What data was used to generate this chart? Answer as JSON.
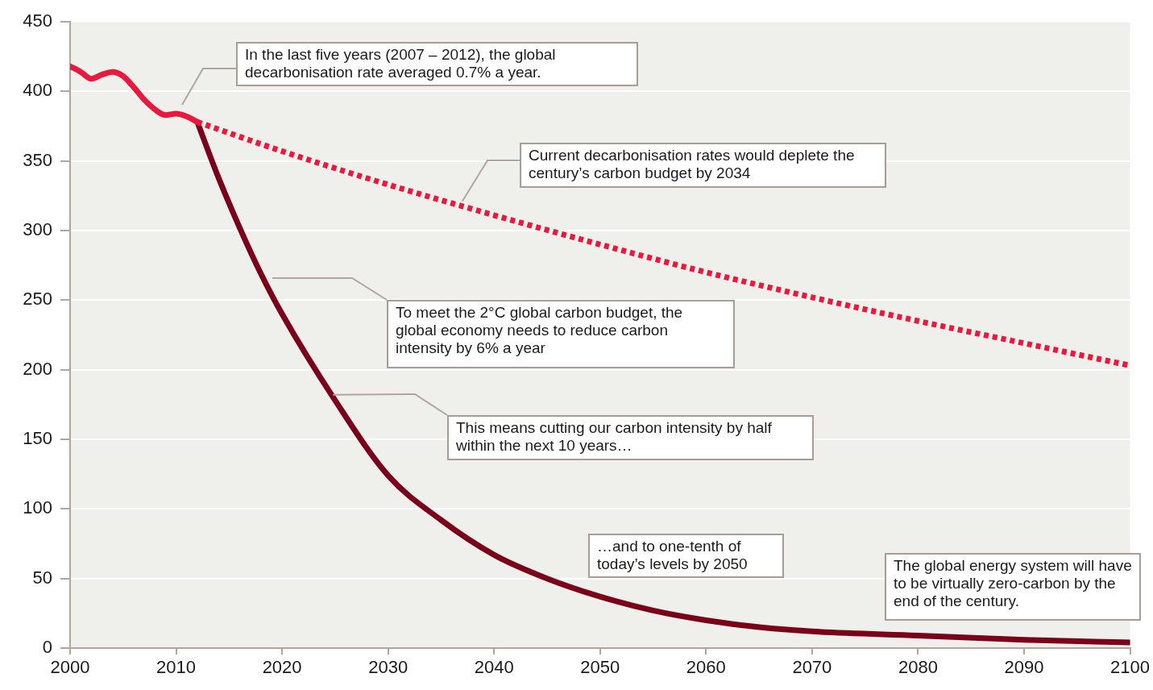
{
  "chart_data": {
    "type": "line",
    "xlim": [
      2000,
      2100
    ],
    "xticks": [
      2000,
      2010,
      2020,
      2030,
      2040,
      2050,
      2060,
      2070,
      2080,
      2090,
      2100
    ],
    "ylim": [
      0,
      450
    ],
    "yticks": [
      0,
      50,
      100,
      150,
      200,
      250,
      300,
      350,
      400,
      450
    ],
    "grid": "y",
    "legend": false,
    "marker": "none",
    "series": [
      {
        "color": "#e8193c",
        "line_style": "solid",
        "x": [
          2000,
          2001,
          2002,
          2003,
          2004,
          2005,
          2006,
          2007,
          2008,
          2009,
          2010,
          2011,
          2012
        ],
        "values": [
          418,
          414,
          409,
          412,
          414,
          411,
          403,
          394,
          387,
          383,
          384,
          382,
          378
        ]
      },
      {
        "color": "#e8193c",
        "line_style": "dotted",
        "x": [
          2012,
          2020,
          2030,
          2040,
          2050,
          2060,
          2070,
          2080,
          2090,
          2100
        ],
        "values": [
          378,
          357,
          333,
          311,
          290,
          270,
          252,
          235,
          219,
          203
        ]
      },
      {
        "color": "#7a0019",
        "line_style": "solid",
        "x": [
          2012,
          2014,
          2016,
          2018,
          2020,
          2025,
          2030,
          2035,
          2040,
          2045,
          2050,
          2055,
          2060,
          2065,
          2070,
          2080,
          2090,
          2100
        ],
        "values": [
          378,
          338,
          302,
          269,
          240,
          178,
          124,
          92,
          67,
          50,
          37,
          27,
          20,
          15,
          12,
          9,
          6,
          4
        ]
      }
    ],
    "annotations": [
      "In the last five years (2007 – 2012), the global decarbonisation rate averaged 0.7% a year.",
      {
        "text": "Current decarbonisation rates would deplete the century’s carbon budget by 2034",
        "x": 2037,
        "y": 321
      },
      "To meet the 2°C global carbon budget, the global economy needs to reduce carbon intensity by 6% a year",
      {
        "text": "This means cutting our carbon intensity by half within the next 10 years…",
        "x": 2024.8,
        "y": 182
      },
      "…and to one-tenth of today’s levels by 2050",
      "The global energy system will have to be virtually zero-carbon by the end of the century."
    ]
  }
}
